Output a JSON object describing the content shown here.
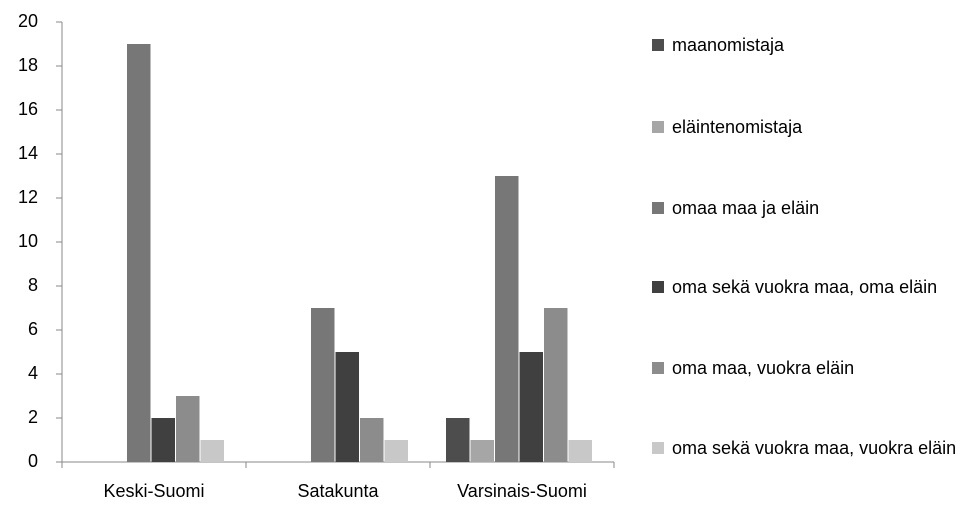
{
  "chart_data": {
    "type": "bar",
    "categories": [
      "Keski-Suomi",
      "Satakunta",
      "Varsinais-Suomi"
    ],
    "series": [
      {
        "name": "maanomistaja",
        "color": "#4d4d4d",
        "values": [
          0,
          0,
          2
        ]
      },
      {
        "name": "eläintenomistaja",
        "color": "#a6a6a6",
        "values": [
          0,
          0,
          1
        ]
      },
      {
        "name": "omaa maa ja eläin",
        "color": "#777777",
        "values": [
          19,
          7,
          13
        ]
      },
      {
        "name": "oma sekä vuokra maa, oma eläin",
        "color": "#404040",
        "values": [
          2,
          5,
          5
        ]
      },
      {
        "name": "oma maa, vuokra eläin",
        "color": "#8c8c8c",
        "values": [
          3,
          2,
          7
        ]
      },
      {
        "name": "oma sekä vuokra maa, vuokra eläin",
        "color": "#c8c8c8",
        "values": [
          1,
          1,
          1
        ]
      }
    ],
    "ylim": [
      0,
      20
    ],
    "yticks": [
      0,
      2,
      4,
      6,
      8,
      10,
      12,
      14,
      16,
      18,
      20
    ],
    "legend": "right"
  }
}
